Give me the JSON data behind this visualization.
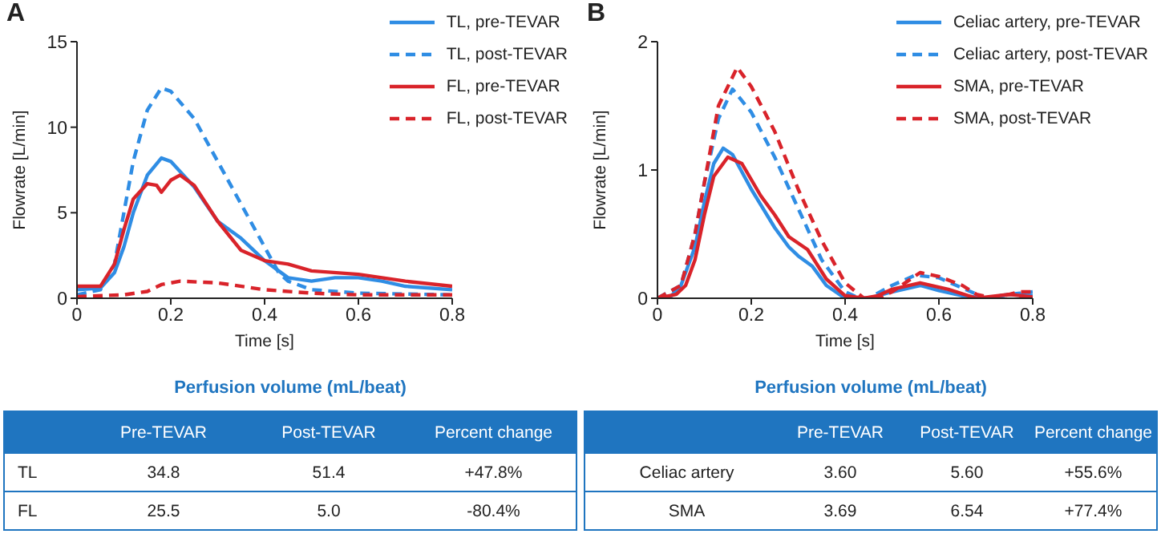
{
  "chart_data": [
    {
      "type": "line",
      "title": "A",
      "xlabel": "Time [s]",
      "ylabel": "Flowrate [L/min]",
      "xlim": [
        0,
        0.8
      ],
      "xticks": [
        0,
        0.2,
        0.4,
        0.6,
        0.8
      ],
      "ylim": [
        0,
        15
      ],
      "yticks": [
        0,
        5,
        10,
        15
      ],
      "grid": false,
      "legend": "top right",
      "marker": "none",
      "series": [
        {
          "name": "TL, pre-TEVAR",
          "color": "#2f8de4",
          "line_style": "solid",
          "x": [
            0,
            0.05,
            0.08,
            0.1,
            0.12,
            0.15,
            0.18,
            0.2,
            0.25,
            0.3,
            0.35,
            0.4,
            0.45,
            0.5,
            0.55,
            0.6,
            0.65,
            0.7,
            0.8
          ],
          "values": [
            0.5,
            0.6,
            1.5,
            3,
            5,
            7.2,
            8.2,
            8,
            6.5,
            4.5,
            3.5,
            2.2,
            1.2,
            1,
            1.2,
            1.2,
            1,
            0.7,
            0.5
          ]
        },
        {
          "name": "TL, post-TEVAR",
          "color": "#2f8de4",
          "line_style": "dashed",
          "x": [
            0,
            0.05,
            0.08,
            0.1,
            0.12,
            0.15,
            0.18,
            0.2,
            0.25,
            0.3,
            0.35,
            0.4,
            0.43,
            0.45,
            0.5,
            0.6,
            0.8
          ],
          "values": [
            0.2,
            0.5,
            2,
            5,
            8,
            11,
            12.3,
            12.1,
            10.5,
            8,
            5.5,
            3,
            1.5,
            1,
            0.5,
            0.3,
            0.2
          ]
        },
        {
          "name": "FL, pre-TEVAR",
          "color": "#d9232a",
          "line_style": "solid",
          "x": [
            0,
            0.05,
            0.08,
            0.1,
            0.12,
            0.15,
            0.17,
            0.18,
            0.2,
            0.22,
            0.25,
            0.3,
            0.35,
            0.4,
            0.45,
            0.5,
            0.6,
            0.7,
            0.8
          ],
          "values": [
            0.7,
            0.7,
            2,
            4,
            5.8,
            6.7,
            6.6,
            6.2,
            6.9,
            7.2,
            6.6,
            4.5,
            2.8,
            2.2,
            2,
            1.6,
            1.4,
            1,
            0.7
          ]
        },
        {
          "name": "FL, post-TEVAR",
          "color": "#d9232a",
          "line_style": "dashed",
          "x": [
            0,
            0.1,
            0.15,
            0.18,
            0.22,
            0.3,
            0.4,
            0.5,
            0.6,
            0.8
          ],
          "values": [
            0.1,
            0.2,
            0.4,
            0.8,
            1,
            0.9,
            0.5,
            0.3,
            0.2,
            0.2
          ]
        }
      ]
    },
    {
      "type": "line",
      "title": "B",
      "xlabel": "Time [s]",
      "ylabel": "Flowrate [L/min]",
      "xlim": [
        0,
        0.8
      ],
      "xticks": [
        0,
        0.2,
        0.4,
        0.6,
        0.8
      ],
      "ylim": [
        0,
        2
      ],
      "yticks": [
        0,
        1,
        2
      ],
      "grid": false,
      "legend": "top right",
      "marker": "none",
      "series": [
        {
          "name": "Celiac artery, pre-TEVAR",
          "color": "#2f8de4",
          "line_style": "solid",
          "x": [
            0,
            0.03,
            0.05,
            0.08,
            0.1,
            0.12,
            0.14,
            0.16,
            0.2,
            0.25,
            0.28,
            0.3,
            0.33,
            0.36,
            0.4,
            0.45,
            0.5,
            0.56,
            0.6,
            0.65,
            0.7,
            0.75,
            0.8
          ],
          "values": [
            0,
            0.02,
            0.1,
            0.4,
            0.75,
            1.05,
            1.17,
            1.12,
            0.85,
            0.55,
            0.4,
            0.33,
            0.25,
            0.1,
            0,
            0,
            0.05,
            0.1,
            0.06,
            0.02,
            0,
            0.03,
            0.02
          ]
        },
        {
          "name": "Celiac artery, post-TEVAR",
          "color": "#2f8de4",
          "line_style": "dashed",
          "x": [
            0,
            0.05,
            0.08,
            0.1,
            0.13,
            0.16,
            0.2,
            0.25,
            0.3,
            0.35,
            0.4,
            0.43,
            0.45,
            0.5,
            0.55,
            0.6,
            0.65,
            0.7,
            0.75,
            0.8
          ],
          "values": [
            0,
            0.1,
            0.5,
            0.9,
            1.4,
            1.63,
            1.45,
            1.1,
            0.7,
            0.3,
            0.05,
            0,
            0,
            0.1,
            0.18,
            0.16,
            0.08,
            0,
            0.03,
            0.05
          ]
        },
        {
          "name": "SMA, pre-TEVAR",
          "color": "#d9232a",
          "line_style": "solid",
          "x": [
            0,
            0.04,
            0.06,
            0.08,
            0.1,
            0.12,
            0.15,
            0.18,
            0.22,
            0.25,
            0.28,
            0.32,
            0.36,
            0.4,
            0.44,
            0.47,
            0.5,
            0.56,
            0.62,
            0.68,
            0.75,
            0.8
          ],
          "values": [
            0,
            0.03,
            0.1,
            0.3,
            0.65,
            0.95,
            1.1,
            1.05,
            0.8,
            0.65,
            0.48,
            0.38,
            0.15,
            0.02,
            0,
            0.02,
            0.07,
            0.12,
            0.07,
            0,
            0.03,
            0.01
          ]
        },
        {
          "name": "SMA, post-TEVAR",
          "color": "#d9232a",
          "line_style": "dashed",
          "x": [
            0,
            0.05,
            0.08,
            0.1,
            0.13,
            0.17,
            0.2,
            0.25,
            0.3,
            0.35,
            0.4,
            0.44,
            0.47,
            0.5,
            0.56,
            0.6,
            0.65,
            0.68,
            0.72,
            0.77,
            0.8
          ],
          "values": [
            0,
            0.1,
            0.5,
            0.9,
            1.5,
            1.8,
            1.65,
            1.3,
            0.85,
            0.45,
            0.12,
            0,
            0,
            0.05,
            0.2,
            0.17,
            0.1,
            0.03,
            0,
            0.05,
            0.05
          ]
        }
      ]
    },
    {
      "type": "other",
      "title": "Perfusion volume (mL/beat)",
      "categories": [
        "Pre-TEVAR",
        "Post-TEVAR",
        "Percent change"
      ],
      "y_categories": [
        "TL",
        "FL"
      ],
      "cell_labels": [
        [
          "34.8",
          "51.4",
          "+47.8%"
        ],
        [
          "25.5",
          "5.0",
          "-80.4%"
        ]
      ]
    },
    {
      "type": "other",
      "title": "Perfusion volume (mL/beat)",
      "categories": [
        "Pre-TEVAR",
        "Post-TEVAR",
        "Percent change"
      ],
      "y_categories": [
        "Celiac artery",
        "SMA"
      ],
      "cell_labels": [
        [
          "3.60",
          "5.60",
          "+55.6%"
        ],
        [
          "3.69",
          "6.54",
          "+77.4%"
        ]
      ]
    }
  ]
}
